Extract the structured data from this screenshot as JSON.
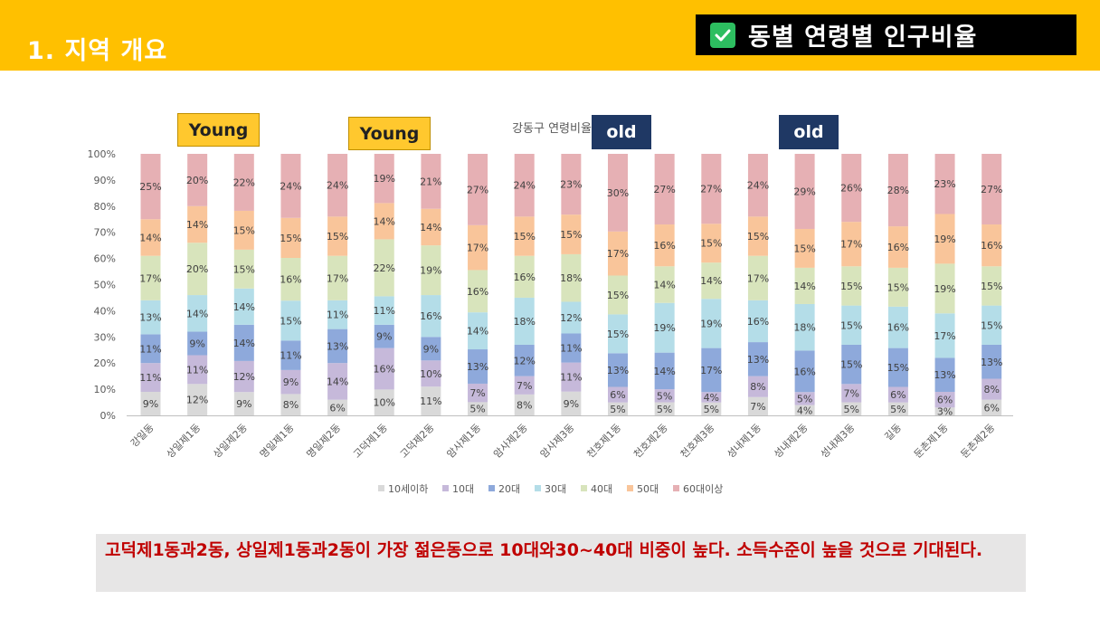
{
  "header": {
    "section_title": "1. 지역 개요",
    "badge_title": "동별 연령별 인구비율",
    "badge_icon": "check-icon"
  },
  "tags": {
    "young_1": "Young",
    "young_2": "Young",
    "old_1": "old",
    "old_2": "old"
  },
  "bottom_note": "고덕제1동과2동, 상일제1동과2동이 가장 젊은동으로 10대와30~40대 비중이 높다. 소득수준이 높을 것으로 기대된다.",
  "colors": {
    "header": "#FFC000",
    "note_text": "#C00000",
    "series": [
      "#D9D9D9",
      "#C6B9DA",
      "#8EA9DB",
      "#B4DDE8",
      "#D8E4BC",
      "#F9C59A",
      "#E6B0B4"
    ]
  },
  "chart_data": {
    "type": "bar",
    "stacked": "percent",
    "title": "강동구 연령비율",
    "ylim": [
      0,
      100
    ],
    "yticks": [
      "0%",
      "10%",
      "20%",
      "30%",
      "40%",
      "50%",
      "60%",
      "70%",
      "80%",
      "90%",
      "100%"
    ],
    "grid": false,
    "legend": "bottom",
    "categories": [
      "강일동",
      "상일제1동",
      "상일제2동",
      "명일제1동",
      "명일제2동",
      "고덕제1동",
      "고덕제2동",
      "암사제1동",
      "암사제2동",
      "암사제3동",
      "천호제1동",
      "천호제2동",
      "천호제3동",
      "성내제1동",
      "성내제2동",
      "성내제3동",
      "길동",
      "둔촌제1동",
      "둔촌제2동"
    ],
    "series": [
      {
        "name": "10세이하",
        "values": [
          9,
          12,
          9,
          8,
          6,
          10,
          11,
          5,
          8,
          9,
          5,
          5,
          5,
          7,
          4,
          5,
          5,
          3,
          6
        ]
      },
      {
        "name": "10대",
        "values": [
          11,
          11,
          12,
          9,
          14,
          16,
          10,
          7,
          7,
          11,
          6,
          5,
          4,
          8,
          5,
          7,
          6,
          6,
          8
        ]
      },
      {
        "name": "20대",
        "values": [
          11,
          9,
          14,
          11,
          13,
          9,
          9,
          13,
          12,
          11,
          13,
          14,
          17,
          13,
          16,
          15,
          15,
          13,
          13
        ]
      },
      {
        "name": "30대",
        "values": [
          13,
          14,
          14,
          15,
          11,
          11,
          16,
          14,
          18,
          12,
          15,
          19,
          19,
          16,
          18,
          15,
          16,
          17,
          15
        ]
      },
      {
        "name": "40대",
        "values": [
          17,
          20,
          15,
          16,
          17,
          22,
          19,
          16,
          16,
          18,
          15,
          14,
          14,
          17,
          14,
          15,
          15,
          19,
          15
        ]
      },
      {
        "name": "50대",
        "values": [
          14,
          14,
          15,
          15,
          15,
          14,
          14,
          17,
          15,
          15,
          17,
          16,
          15,
          15,
          15,
          17,
          16,
          19,
          16
        ]
      },
      {
        "name": "60대이상",
        "values": [
          25,
          20,
          22,
          24,
          24,
          19,
          21,
          27,
          24,
          23,
          30,
          27,
          27,
          24,
          29,
          26,
          28,
          23,
          27
        ]
      }
    ]
  }
}
